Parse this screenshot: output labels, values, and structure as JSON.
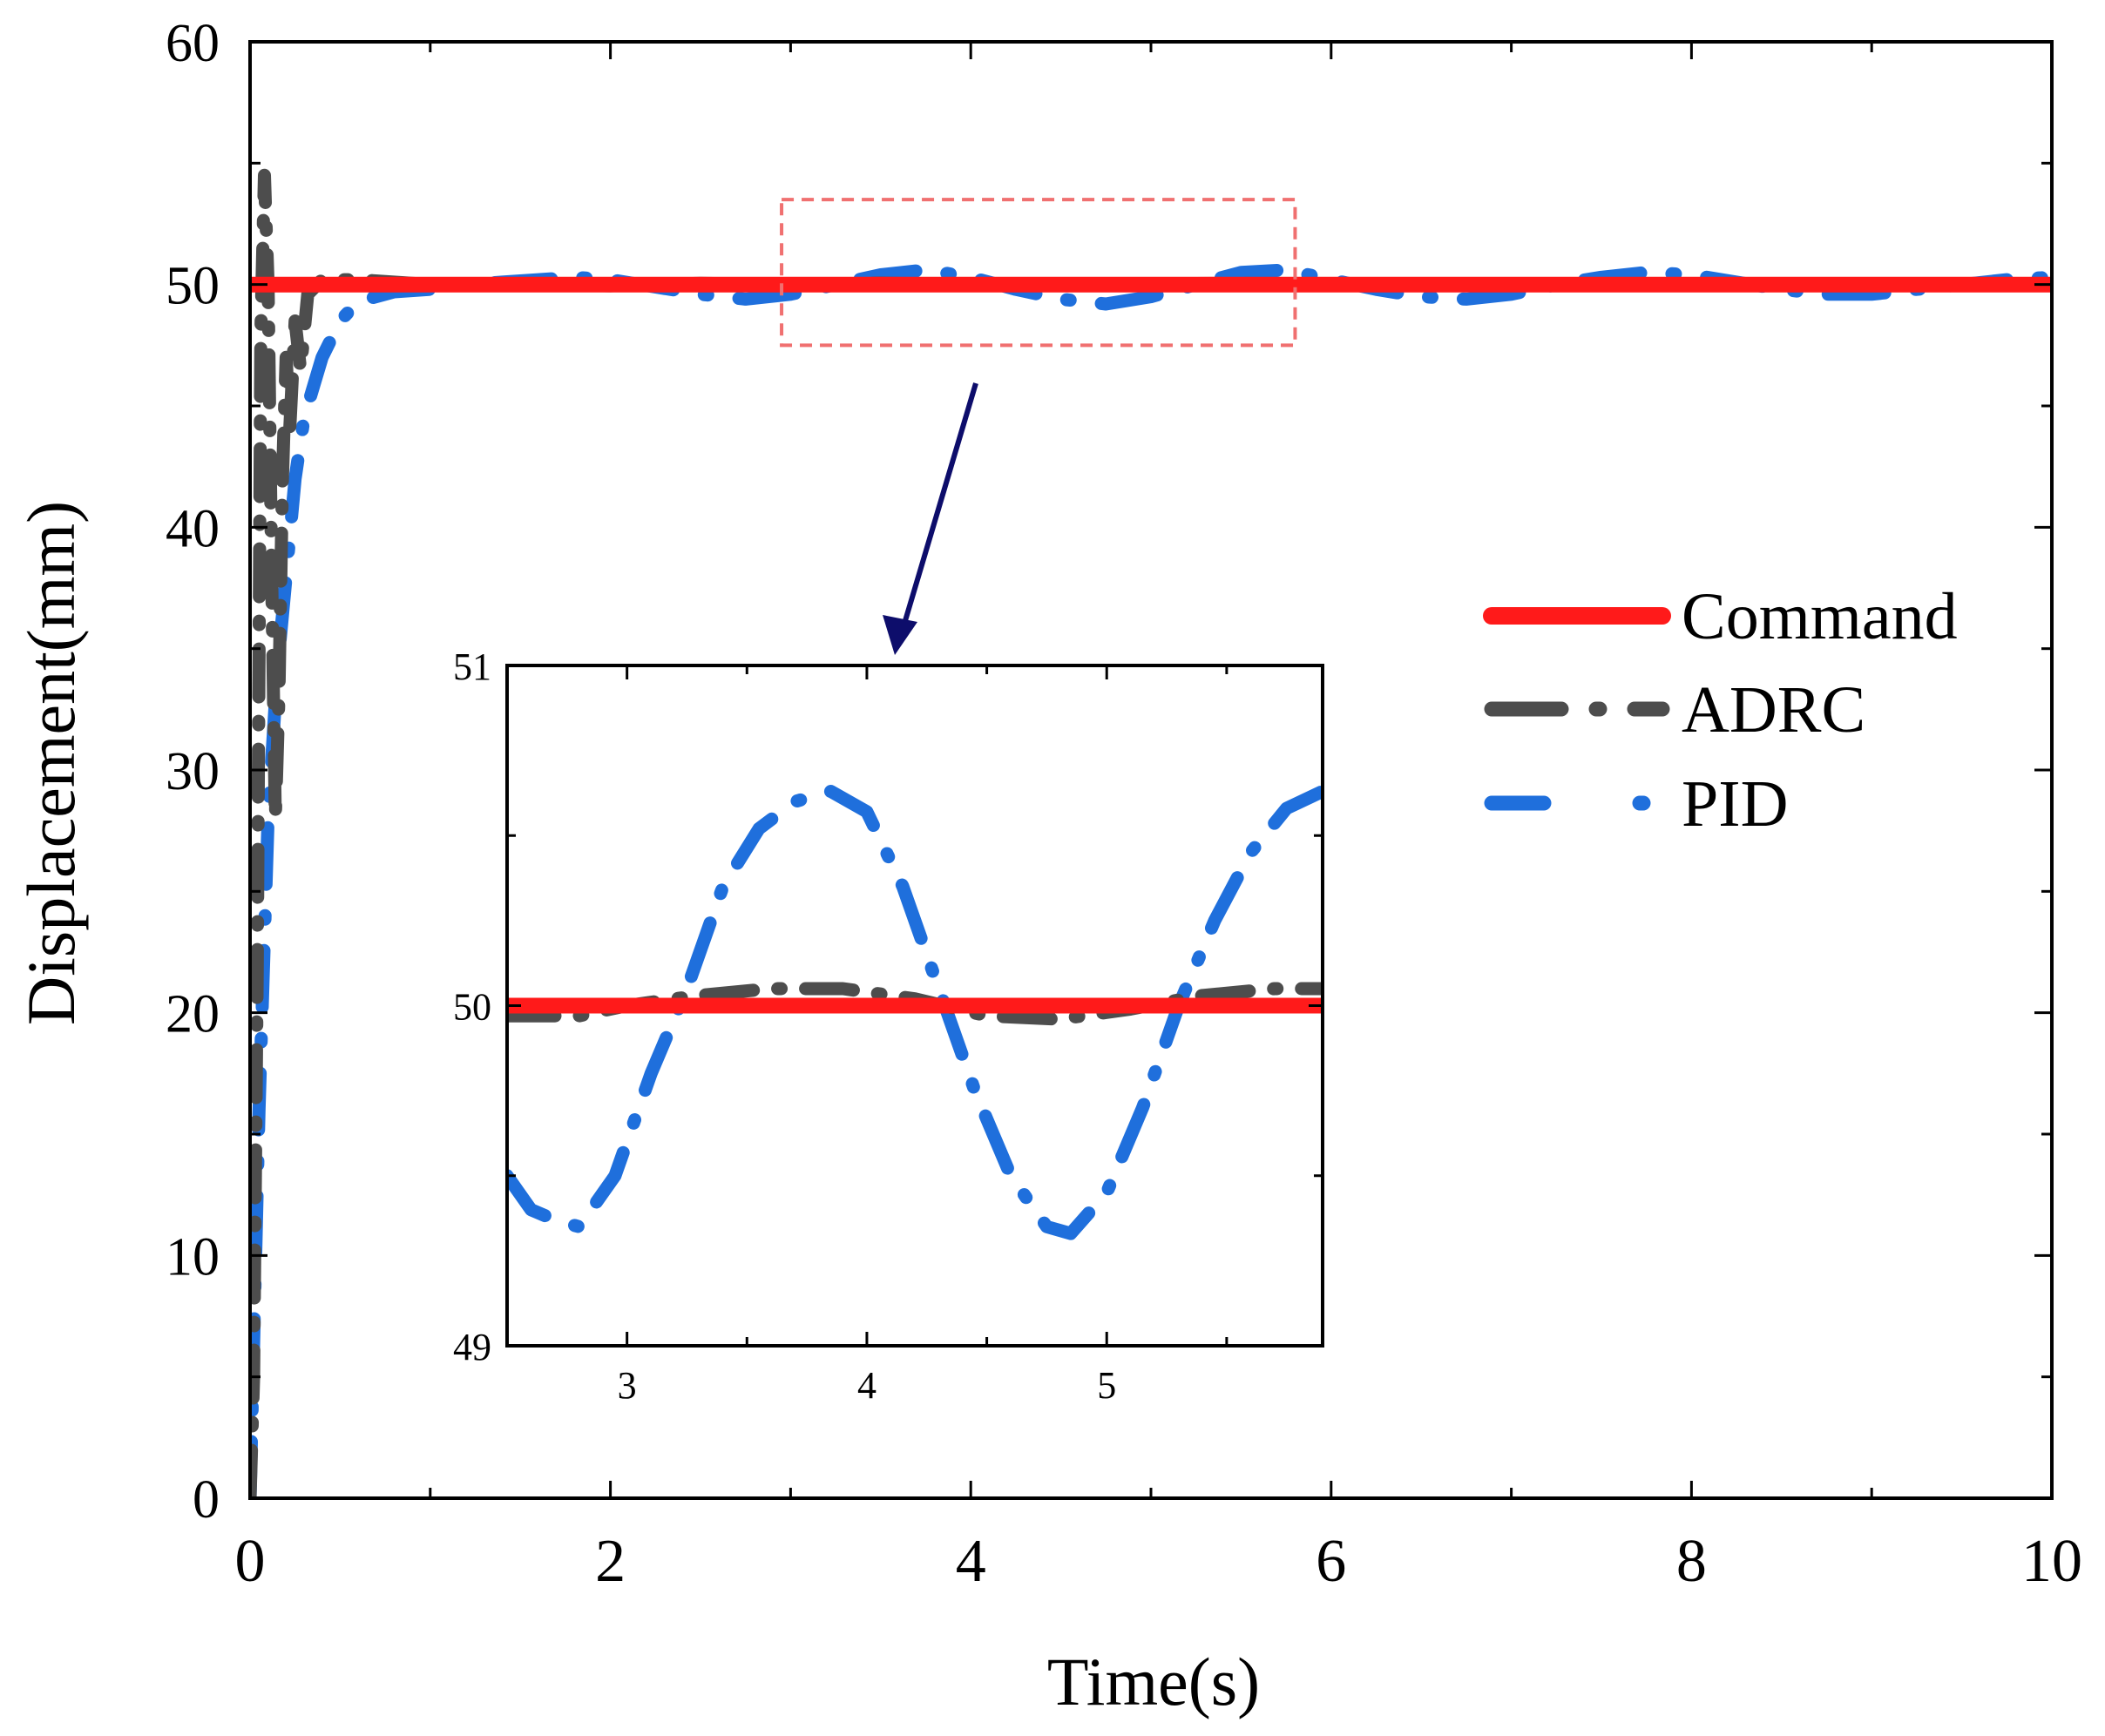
{
  "chart_data": [
    {
      "id": "main",
      "type": "line",
      "xlabel": "Time(s)",
      "ylabel": "Displacement(mm)",
      "xlim": [
        0,
        10
      ],
      "ylim": [
        0,
        60
      ],
      "xticks": [
        0,
        2,
        4,
        6,
        8,
        10
      ],
      "yticks": [
        0,
        10,
        20,
        30,
        40,
        50,
        60
      ],
      "legend_position": "right",
      "legend": [
        {
          "name": "Command",
          "style": "solid",
          "color": "#ff1a1a"
        },
        {
          "name": "ADRC",
          "style": "dash-dot",
          "color": "#4d4d4d"
        },
        {
          "name": "PID",
          "style": "dash-dot",
          "color": "#1f6fdc"
        }
      ],
      "series": [
        {
          "name": "Command",
          "x": [
            0,
            10
          ],
          "y": [
            50,
            50
          ]
        },
        {
          "name": "ADRC",
          "x": [
            0.0,
            0.02,
            0.04,
            0.06,
            0.08,
            0.1,
            0.12,
            0.14,
            0.16,
            0.18,
            0.2,
            0.22,
            0.25,
            0.28,
            0.32,
            0.4,
            0.6,
            1.0,
            1.5,
            2.0,
            2.5,
            3.0,
            3.5,
            4.0,
            4.5,
            5.0,
            5.5,
            6.0,
            6.5,
            7.0,
            7.5,
            8.0,
            8.5,
            9.0,
            9.5,
            10.0
          ],
          "y": [
            0.0,
            5.0,
            22.0,
            48.0,
            54.5,
            50.0,
            38.0,
            28.0,
            33.0,
            42.0,
            47.0,
            44.0,
            48.5,
            46.5,
            49.6,
            50.2,
            50.2,
            50.0,
            50.0,
            49.95,
            50.05,
            50.0,
            50.06,
            50.0,
            49.96,
            50.03,
            50.05,
            50.0,
            49.97,
            50.0,
            50.02,
            50.02,
            50.0,
            49.98,
            50.0,
            50.0
          ]
        },
        {
          "name": "PID",
          "x": [
            0.0,
            0.05,
            0.1,
            0.15,
            0.2,
            0.25,
            0.3,
            0.4,
            0.5,
            0.6,
            0.8,
            1.0,
            1.2,
            1.4,
            1.6,
            1.8,
            2.0,
            2.25,
            2.5,
            2.75,
            3.0,
            3.25,
            3.5,
            3.75,
            4.0,
            4.25,
            4.5,
            4.75,
            5.0,
            5.25,
            5.5,
            5.75,
            6.0,
            6.25,
            6.5,
            6.75,
            7.0,
            7.25,
            7.5,
            7.75,
            8.0,
            8.25,
            8.5,
            8.75,
            9.0,
            9.25,
            9.5,
            9.75,
            10.0
          ],
          "y": [
            0.0,
            16.0,
            28.0,
            34.0,
            38.0,
            42.0,
            44.5,
            47.0,
            48.5,
            49.3,
            49.7,
            49.8,
            50.0,
            50.1,
            50.2,
            50.3,
            50.2,
            49.9,
            49.6,
            49.4,
            49.6,
            50.0,
            50.4,
            50.6,
            50.3,
            49.8,
            49.4,
            49.2,
            49.5,
            50.0,
            50.5,
            50.6,
            50.2,
            49.8,
            49.5,
            49.4,
            49.6,
            50.0,
            50.3,
            50.5,
            50.4,
            50.1,
            49.8,
            49.6,
            49.6,
            49.8,
            50.0,
            50.2,
            50.3
          ]
        }
      ]
    },
    {
      "id": "inset",
      "type": "line",
      "xlim": [
        2.5,
        5.9
      ],
      "ylim": [
        49,
        51
      ],
      "xticks": [
        3,
        4,
        5
      ],
      "yticks": [
        49,
        50,
        51
      ],
      "zoom_source_region": {
        "x_range": [
          2.95,
          5.8
        ],
        "y_range": [
          47.5,
          53.5
        ]
      },
      "series": [
        {
          "name": "Command",
          "x": [
            2.5,
            5.9
          ],
          "y": [
            50,
            50
          ]
        },
        {
          "name": "ADRC",
          "x": [
            2.5,
            2.8,
            3.0,
            3.3,
            3.6,
            3.9,
            4.2,
            4.5,
            4.8,
            5.1,
            5.4,
            5.7,
            5.9
          ],
          "y": [
            49.97,
            49.97,
            50.0,
            50.03,
            50.05,
            50.05,
            50.02,
            49.97,
            49.96,
            49.99,
            50.03,
            50.05,
            50.05
          ]
        },
        {
          "name": "PID",
          "x": [
            2.5,
            2.6,
            2.7,
            2.8,
            2.95,
            3.1,
            3.25,
            3.4,
            3.55,
            3.7,
            3.85,
            4.0,
            4.15,
            4.3,
            4.45,
            4.6,
            4.75,
            4.85,
            5.0,
            5.15,
            5.3,
            5.45,
            5.6,
            5.75,
            5.9
          ],
          "y": [
            49.5,
            49.4,
            49.37,
            49.35,
            49.5,
            49.8,
            50.05,
            50.35,
            50.52,
            50.6,
            50.63,
            50.57,
            50.35,
            50.05,
            49.75,
            49.5,
            49.35,
            49.33,
            49.45,
            49.7,
            50.0,
            50.25,
            50.45,
            50.58,
            50.63
          ]
        }
      ]
    }
  ]
}
